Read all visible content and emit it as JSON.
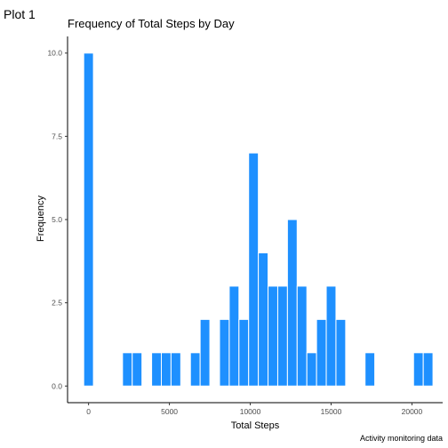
{
  "plot_tag": "Plot 1",
  "chart_data": {
    "type": "bar",
    "title": "Frequency of Total Steps by Day",
    "xlabel": "Total Steps",
    "ylabel": "Frequency",
    "caption": "Activity monitoring data",
    "bar_color": "#1E90FF",
    "bin_width": 600,
    "xlim": [
      -1300,
      21900
    ],
    "ylim": [
      -0.5,
      10.5
    ],
    "x_ticks": [
      0,
      5000,
      10000,
      15000,
      20000
    ],
    "x_tick_labels": [
      "0",
      "5000",
      "10000",
      "15000",
      "20000"
    ],
    "y_ticks": [
      0,
      2.5,
      5,
      7.5,
      10
    ],
    "y_tick_labels": [
      "0.0",
      "2.5",
      "5.0",
      "7.5",
      "10.0"
    ],
    "bins": [
      {
        "x": 0,
        "count": 10
      },
      {
        "x": 2400,
        "count": 1
      },
      {
        "x": 3000,
        "count": 1
      },
      {
        "x": 4200,
        "count": 1
      },
      {
        "x": 4800,
        "count": 1
      },
      {
        "x": 5400,
        "count": 1
      },
      {
        "x": 6600,
        "count": 1
      },
      {
        "x": 7200,
        "count": 2
      },
      {
        "x": 8400,
        "count": 2
      },
      {
        "x": 9000,
        "count": 3
      },
      {
        "x": 9600,
        "count": 2
      },
      {
        "x": 10200,
        "count": 7
      },
      {
        "x": 10800,
        "count": 4
      },
      {
        "x": 11400,
        "count": 3
      },
      {
        "x": 12000,
        "count": 3
      },
      {
        "x": 12600,
        "count": 5
      },
      {
        "x": 13200,
        "count": 3
      },
      {
        "x": 13800,
        "count": 1
      },
      {
        "x": 14400,
        "count": 2
      },
      {
        "x": 15000,
        "count": 3
      },
      {
        "x": 15600,
        "count": 2
      },
      {
        "x": 17400,
        "count": 1
      },
      {
        "x": 20400,
        "count": 1
      },
      {
        "x": 21000,
        "count": 1
      }
    ]
  }
}
